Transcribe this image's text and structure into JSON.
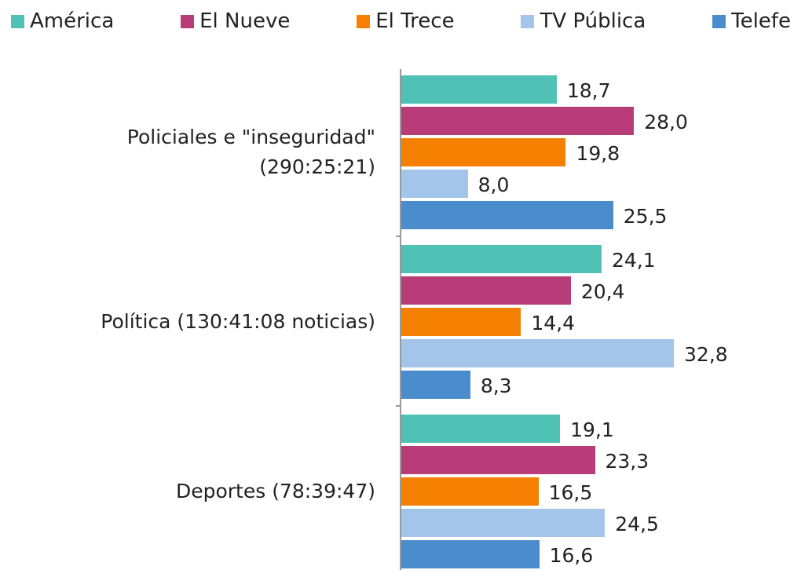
{
  "chart_data": {
    "type": "barh",
    "categories": [
      "Policiales e \"inseguridad\"\n(290:25:21)",
      "Política (130:41:08 noticias)",
      "Deportes (78:39:47)"
    ],
    "series": [
      {
        "name": "América",
        "color": "#4fc1b5",
        "values": [
          18.7,
          24.1,
          19.1
        ],
        "value_labels": [
          "18,7",
          "24,1",
          "19,1"
        ]
      },
      {
        "name": "El Nueve",
        "color": "#b83c78",
        "values": [
          28.0,
          20.4,
          23.3
        ],
        "value_labels": [
          "28,0",
          "20,4",
          "23,3"
        ]
      },
      {
        "name": "El Trece",
        "color": "#f57f00",
        "values": [
          19.8,
          14.4,
          16.5
        ],
        "value_labels": [
          "19,8",
          "14,4",
          "16,5"
        ]
      },
      {
        "name": "TV Pública",
        "color": "#a3c5e9",
        "values": [
          8.0,
          32.8,
          24.5
        ],
        "value_labels": [
          "8,0",
          "32,8",
          "24,5"
        ]
      },
      {
        "name": "Telefe",
        "color": "#4a8ccc",
        "values": [
          25.5,
          8.3,
          16.6
        ],
        "value_labels": [
          "25,5",
          "8,3",
          "16,6"
        ]
      }
    ]
  }
}
